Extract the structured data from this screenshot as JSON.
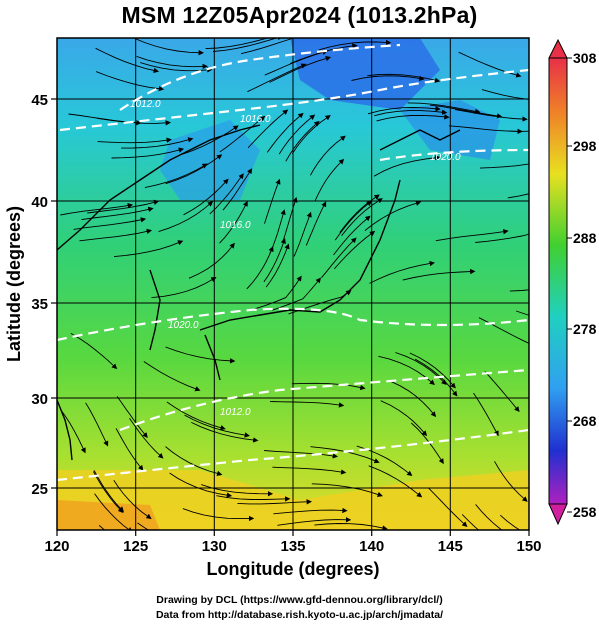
{
  "title": "MSM 12Z05Apr2024 (1013.2hPa)",
  "map": {
    "x_axis": {
      "label": "Longitude (degrees)",
      "range": [
        120,
        150
      ],
      "ticks": [
        "120",
        "125",
        "130",
        "135",
        "140",
        "145",
        "150"
      ]
    },
    "y_axis": {
      "label": "Latitude  (degrees)",
      "range": [
        22.4,
        47.6
      ],
      "ticks": [
        "25",
        "30",
        "35",
        "40",
        "45"
      ]
    },
    "field": "temperature (K) with streamlines and isobars",
    "isobar_labels": [
      "1016.0",
      "1020.0",
      "1020.0",
      "1016.0",
      "1012.0",
      "1012.0"
    ]
  },
  "colorbar": {
    "labels": [
      "308",
      "298",
      "288",
      "278",
      "268",
      "258"
    ],
    "range": [
      258,
      308
    ],
    "colors": [
      "#e8305a",
      "#f0a020",
      "#e8e020",
      "#40d030",
      "#20d0c0",
      "#2040e0",
      "#a020c0"
    ]
  },
  "credits": {
    "line1": "Drawing by DCL (https://www.gfd-dennou.org/library/dcl/)",
    "line2": "Data from http://database.rish.kyoto-u.ac.jp/arch/jmadata/"
  }
}
